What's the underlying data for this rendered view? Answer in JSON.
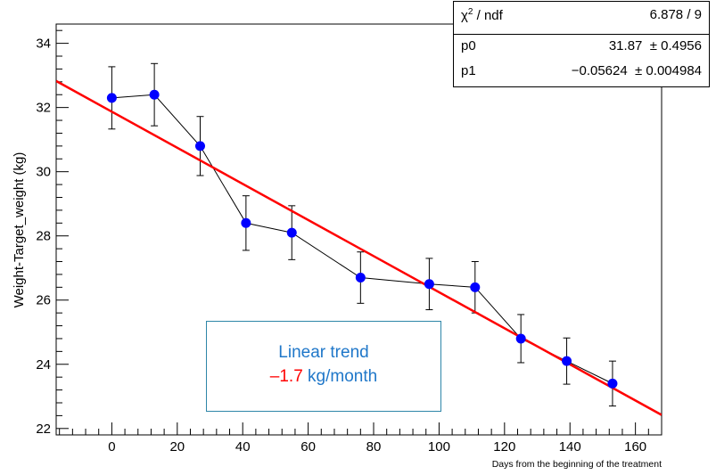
{
  "chart_data": {
    "type": "scatter",
    "title": "",
    "xlabel": "Days from the beginning of the treatment",
    "ylabel": "Weight-Target_weight (kg)",
    "xlim": [
      -17,
      168
    ],
    "ylim": [
      21.8,
      34.6
    ],
    "x_ticks": [
      0,
      20,
      40,
      60,
      80,
      100,
      120,
      140,
      160
    ],
    "y_ticks": [
      22,
      24,
      26,
      28,
      30,
      32,
      34
    ],
    "grid": false,
    "series": [
      {
        "x": [
          0,
          13,
          27,
          41,
          55,
          76,
          97,
          111,
          125,
          139,
          153
        ],
        "y": [
          32.3,
          32.4,
          30.8,
          28.4,
          28.1,
          26.7,
          26.5,
          26.4,
          24.8,
          24.1,
          23.4
        ],
        "yerr": [
          0.97,
          0.97,
          0.92,
          0.85,
          0.84,
          0.8,
          0.8,
          0.8,
          0.75,
          0.72,
          0.7
        ]
      }
    ],
    "fit": {
      "function": "p0 + p1*x",
      "p0": 31.87,
      "p1": -0.05624
    },
    "colors": {
      "marker": "#0000ff",
      "fit_line": "#ff0000",
      "connect_line": "#000000",
      "trend_text": "#1f77c9",
      "trend_value": "#ff0000"
    }
  },
  "stats_box": {
    "chi_name": "χ",
    "chi_sup": "2",
    "chi_rest": " / ndf",
    "chi_value": "6.878 / 9",
    "p0_name": "p0",
    "p0_value": "31.87  ± 0.4956",
    "p1_name": "p1",
    "p1_value": "−0.05624  ± 0.004984"
  },
  "trend_box": {
    "title": "Linear trend",
    "value": "–1.7",
    "unit": " kg/month"
  }
}
